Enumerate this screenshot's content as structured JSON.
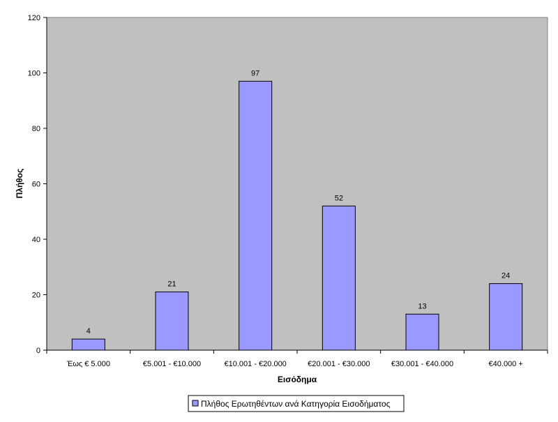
{
  "chart_data": {
    "type": "bar",
    "title": "",
    "categories": [
      "Έως € 5.000",
      "€5.001 - €10.000",
      "€10.001 - €20.000",
      "€20.001 - €30.000",
      "€30.001 - €40.000",
      "€40.000 +"
    ],
    "series": [
      {
        "name": "Πλήθος Ερωτηθέντων ανά Κατηγορία Εισοδήματος",
        "values": [
          4,
          21,
          97,
          52,
          13,
          24
        ],
        "color": "#9999ff"
      }
    ],
    "xlabel": "Εισόδημα",
    "ylabel": "Πλήθος",
    "ylim": [
      0,
      120
    ],
    "yticks": [
      0,
      20,
      40,
      60,
      80,
      100,
      120
    ],
    "plot_background": "#c0c0c0",
    "grid": false,
    "legend_position": "bottom",
    "data_labels": true
  }
}
